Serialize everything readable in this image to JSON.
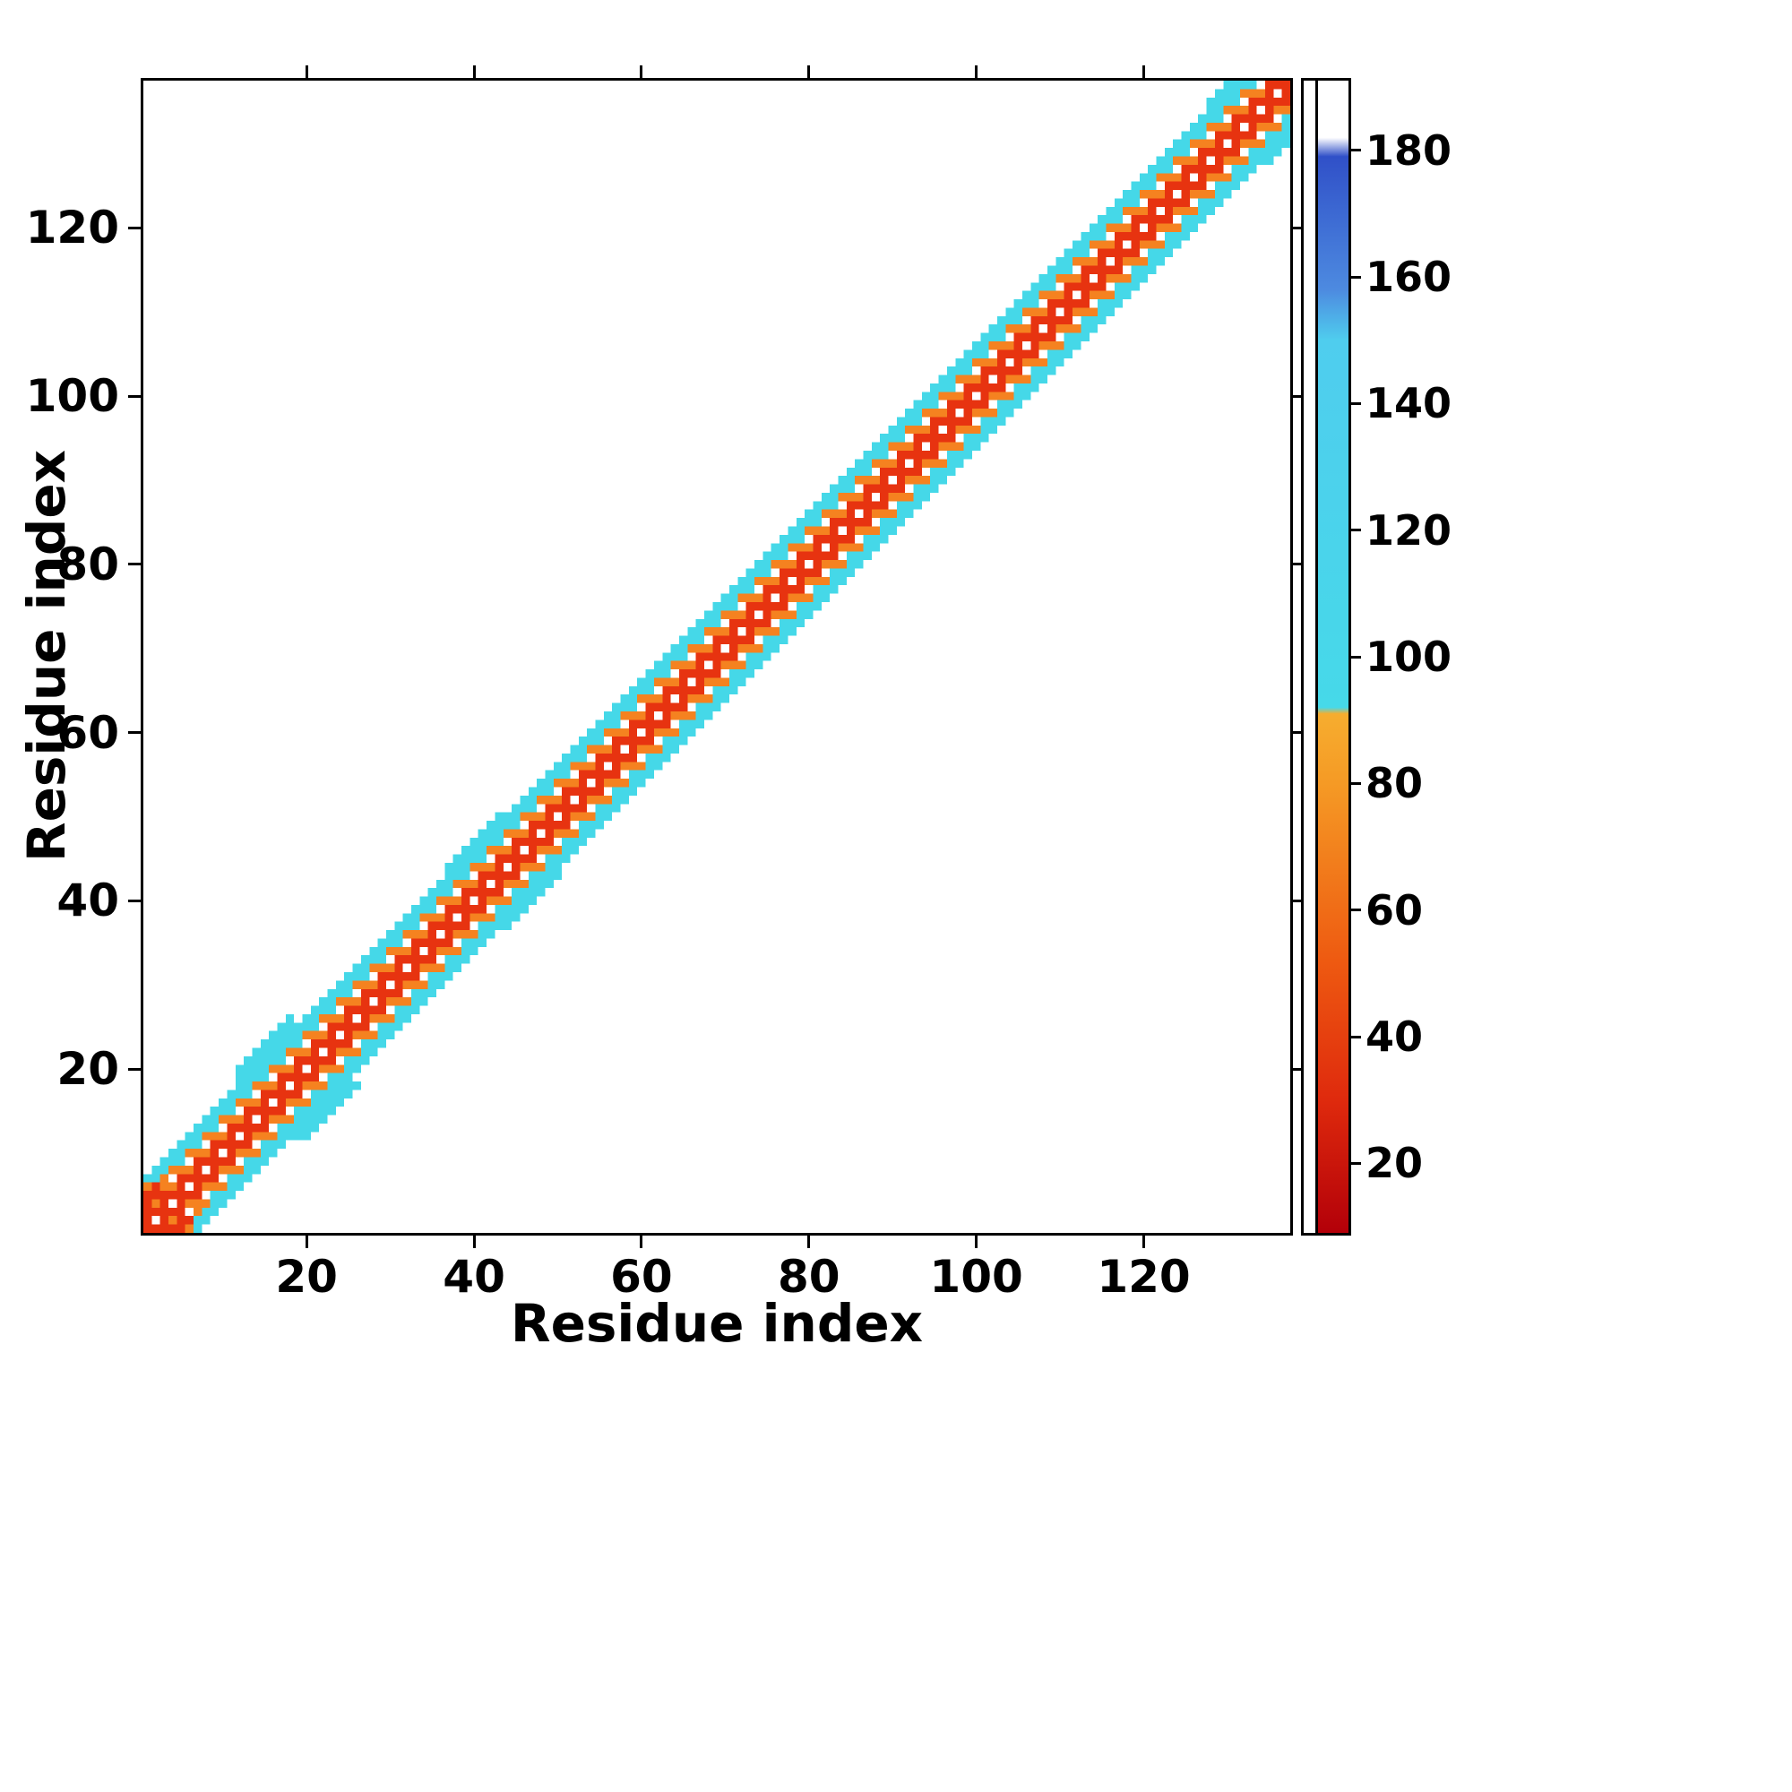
{
  "chart_data": {
    "type": "heatmap",
    "title": "",
    "xlabel": "Residue index",
    "ylabel": "Residue index",
    "x_range": [
      1,
      137
    ],
    "y_range": [
      1,
      137
    ],
    "x_ticks": [
      20,
      40,
      60,
      80,
      100,
      120
    ],
    "y_ticks": [
      20,
      40,
      60,
      80,
      100,
      120
    ],
    "n_residues": 137,
    "grid": false,
    "legend_position": "none",
    "description": "Residue-residue map: colored band along the main diagonal (|i-j| <= ~6). Red nearest the diagonal, orange at intermediate separation, cyan at the band edge; the rest of the matrix is empty (white).",
    "palette": {
      "red": "#e73310",
      "orange": "#f58220",
      "cyan": "#45d8e8",
      "white": "#ffffff"
    },
    "bands": [
      {
        "offset": 0,
        "pattern": "checker",
        "color": "#e73310",
        "alt": "#ffffff"
      },
      {
        "offset": 1,
        "pattern": "solid",
        "color": "#e73310",
        "alt": "#e73310"
      },
      {
        "offset": 2,
        "pattern": "checker",
        "color": "#e73310",
        "alt": "#f58220"
      },
      {
        "offset": 3,
        "pattern": "checker",
        "color": "#f58220",
        "alt": "#ffffff"
      },
      {
        "offset": 4,
        "pattern": "checker",
        "color": "#45d8e8",
        "alt": "#f58220"
      },
      {
        "offset": 5,
        "pattern": "solid",
        "color": "#45d8e8",
        "alt": "#45d8e8"
      },
      {
        "offset": 6,
        "pattern": "solid",
        "color": "#45d8e8",
        "alt": "#45d8e8"
      }
    ],
    "bulges": [
      {
        "start": 12,
        "end": 18,
        "extra": 2
      },
      {
        "start": 37,
        "end": 43,
        "extra": 1
      },
      {
        "start": 128,
        "end": 133,
        "extra": 1
      }
    ],
    "extra_cells": [
      {
        "x": 1,
        "y": 4,
        "c": "red"
      },
      {
        "x": 1,
        "y": 5,
        "c": "red"
      },
      {
        "x": 2,
        "y": 5,
        "c": "red"
      },
      {
        "x": 2,
        "y": 6,
        "c": "red"
      },
      {
        "x": 1,
        "y": 6,
        "c": "orange"
      },
      {
        "x": 3,
        "y": 7,
        "c": "orange"
      },
      {
        "x": 1,
        "y": 7,
        "c": "cyan"
      },
      {
        "x": 2,
        "y": 8,
        "c": "cyan"
      },
      {
        "x": 3,
        "y": 8,
        "c": "cyan"
      },
      {
        "x": 4,
        "y": 9,
        "c": "cyan"
      }
    ],
    "colorbar": {
      "min": 9,
      "max": 191,
      "ticks": [
        20,
        40,
        60,
        80,
        100,
        120,
        140,
        160,
        180
      ],
      "stops": [
        {
          "v": 9,
          "color": "#b30009"
        },
        {
          "v": 30,
          "color": "#df2a0d"
        },
        {
          "v": 52,
          "color": "#ee5a11"
        },
        {
          "v": 80,
          "color": "#f59a25"
        },
        {
          "v": 91,
          "color": "#f6ad2f"
        },
        {
          "v": 92,
          "color": "#46d9e9"
        },
        {
          "v": 150,
          "color": "#4fcdee"
        },
        {
          "v": 158,
          "color": "#4d8ae0"
        },
        {
          "v": 179,
          "color": "#3050c8"
        },
        {
          "v": 182,
          "color": "#ffffff"
        },
        {
          "v": 191,
          "color": "#ffffff"
        }
      ]
    }
  }
}
